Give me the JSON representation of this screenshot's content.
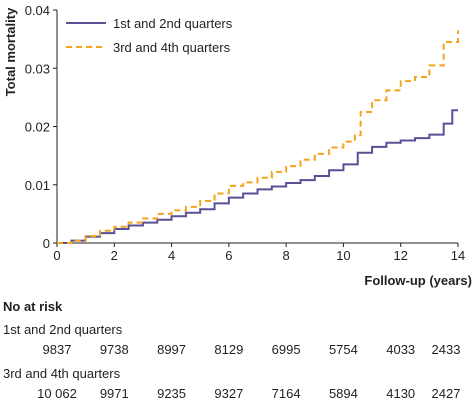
{
  "chart_data": {
    "type": "line",
    "step": true,
    "ylabel": "Total mortality",
    "xlabel": "Follow-up (years)",
    "xlim": [
      0,
      14
    ],
    "ylim": [
      0,
      0.04
    ],
    "xticks": [
      "0",
      "2",
      "4",
      "6",
      "8",
      "10",
      "12",
      "14"
    ],
    "yticks": [
      "0",
      "0.01",
      "0.02",
      "0.03",
      "0.04"
    ],
    "legend_position": "top-left",
    "grid": false,
    "series": [
      {
        "name": "1st and 2nd quarters",
        "color": "#5b4f96",
        "style": "solid",
        "x": [
          0,
          0.5,
          1,
          1.5,
          2,
          2.5,
          3,
          3.5,
          4,
          4.5,
          5,
          5.5,
          6,
          6.5,
          7,
          7.5,
          8,
          8.5,
          9,
          9.5,
          10,
          10.5,
          11,
          11.5,
          12,
          12.5,
          13,
          13.5,
          13.8,
          14
        ],
        "y": [
          0,
          0.0004,
          0.0011,
          0.0017,
          0.0024,
          0.003,
          0.0035,
          0.004,
          0.0046,
          0.0052,
          0.0058,
          0.0068,
          0.0078,
          0.0085,
          0.0092,
          0.0097,
          0.0103,
          0.0108,
          0.0115,
          0.0125,
          0.0135,
          0.0155,
          0.0165,
          0.0172,
          0.0176,
          0.018,
          0.0186,
          0.0205,
          0.0228,
          0.0228
        ]
      },
      {
        "name": "3rd and 4th quarters",
        "color": "#f5a31a",
        "style": "dashed",
        "x": [
          0,
          0.5,
          1,
          1.5,
          2,
          2.5,
          3,
          3.5,
          4,
          4.5,
          5,
          5.5,
          6,
          6.5,
          7,
          7.5,
          8,
          8.5,
          9,
          9.5,
          10,
          10.4,
          10.6,
          11,
          11.5,
          12,
          12.5,
          13,
          13.5,
          14
        ],
        "y": [
          0,
          0.0004,
          0.0012,
          0.0021,
          0.0028,
          0.0035,
          0.0042,
          0.005,
          0.0056,
          0.0062,
          0.0072,
          0.0085,
          0.0098,
          0.0104,
          0.0112,
          0.0122,
          0.0132,
          0.0143,
          0.0153,
          0.0164,
          0.0174,
          0.0185,
          0.0225,
          0.0245,
          0.0262,
          0.0278,
          0.0285,
          0.0305,
          0.0345,
          0.0365
        ]
      }
    ]
  },
  "risk_table": {
    "heading": "No at risk",
    "groups": [
      {
        "label": "1st and 2nd quarters",
        "values": [
          "9837",
          "9738",
          "8997",
          "8129",
          "6995",
          "5754",
          "4033",
          "2433"
        ]
      },
      {
        "label": "3rd and 4th quarters",
        "values": [
          "10 062",
          "9971",
          "9235",
          "9327",
          "7164",
          "5894",
          "4130",
          "2427"
        ]
      }
    ]
  }
}
